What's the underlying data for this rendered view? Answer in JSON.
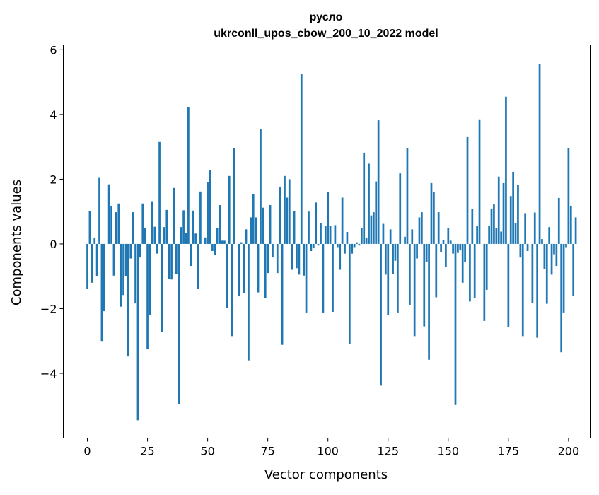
{
  "chart_data": {
    "type": "bar",
    "title_line1": "русло",
    "title_line2": "ukrconll_upos_cbow_200_10_2022 model",
    "xlabel": "Vector components",
    "ylabel": "Components values",
    "xlim": [
      -10,
      209
    ],
    "ylim": [
      -6.0,
      6.15
    ],
    "x_ticks": [
      0,
      25,
      50,
      75,
      100,
      125,
      150,
      175,
      200
    ],
    "x_tick_labels": [
      "0",
      "25",
      "50",
      "75",
      "100",
      "125",
      "150",
      "175",
      "200"
    ],
    "y_ticks": [
      -4,
      -2,
      0,
      2,
      4,
      6
    ],
    "y_tick_labels": [
      "−4",
      "−2",
      "0",
      "2",
      "4",
      "6"
    ],
    "grid": false,
    "bar_color": "#1f77b4",
    "values": [
      -1.38,
      1.02,
      -1.2,
      0.18,
      -1.0,
      2.04,
      -3.0,
      -2.08,
      0.0,
      1.84,
      1.18,
      -0.98,
      0.98,
      1.25,
      -1.94,
      -1.58,
      -1.0,
      -3.48,
      -0.45,
      0.98,
      -1.84,
      -5.45,
      -0.42,
      1.25,
      0.5,
      -3.26,
      -2.2,
      1.32,
      0.53,
      -0.3,
      3.15,
      -2.72,
      0.52,
      1.05,
      -1.08,
      -1.1,
      1.73,
      -0.92,
      -4.95,
      0.52,
      1.04,
      0.33,
      4.23,
      -0.68,
      1.03,
      0.32,
      -1.4,
      1.62,
      0.0,
      0.2,
      1.9,
      2.27,
      -0.22,
      -0.35,
      0.5,
      1.2,
      0.1,
      0.1,
      -1.98,
      2.1,
      -2.85,
      2.97,
      0.0,
      -1.62,
      0.05,
      -1.52,
      0.45,
      -3.6,
      0.82,
      1.55,
      0.82,
      -1.5,
      3.55,
      1.12,
      -1.68,
      -0.9,
      1.2,
      -0.42,
      0.0,
      -0.9,
      1.75,
      -3.12,
      2.1,
      1.43,
      2.0,
      -0.8,
      1.02,
      -0.75,
      -0.95,
      5.25,
      -0.98,
      -2.12,
      1.0,
      -0.22,
      -0.12,
      1.28,
      -0.05,
      0.65,
      -2.12,
      0.55,
      1.6,
      0.55,
      -2.1,
      0.58,
      -0.1,
      -0.8,
      1.43,
      -0.3,
      0.37,
      -3.1,
      -0.3,
      -0.1,
      0.05,
      -0.05,
      0.48,
      2.82,
      0.18,
      2.48,
      0.88,
      0.98,
      1.93,
      3.82,
      -4.38,
      0.62,
      -0.95,
      -2.2,
      0.45,
      -0.92,
      -0.52,
      -2.12,
      2.18,
      0.0,
      0.22,
      2.95,
      -1.88,
      0.45,
      -2.85,
      -0.45,
      0.82,
      0.98,
      -2.55,
      -0.55,
      -3.58,
      1.88,
      1.6,
      -1.65,
      0.98,
      -0.25,
      0.12,
      -0.72,
      0.48,
      0.1,
      -0.3,
      -4.98,
      -0.28,
      -0.2,
      -1.2,
      -0.55,
      3.3,
      -1.78,
      1.07,
      -1.68,
      0.55,
      3.85,
      0.0,
      -2.38,
      -1.42,
      0.55,
      1.08,
      1.22,
      0.5,
      2.08,
      0.38,
      1.88,
      4.55,
      -2.57,
      1.48,
      2.23,
      0.65,
      1.82,
      -0.42,
      -2.85,
      0.95,
      -0.22,
      0.0,
      -1.82,
      0.97,
      -2.9,
      5.55,
      0.15,
      -0.78,
      -1.85,
      0.52,
      -0.95,
      -0.32,
      -0.68,
      1.42,
      -3.35,
      -2.12,
      -0.1,
      2.95,
      1.18,
      -1.62,
      0.82
    ]
  }
}
